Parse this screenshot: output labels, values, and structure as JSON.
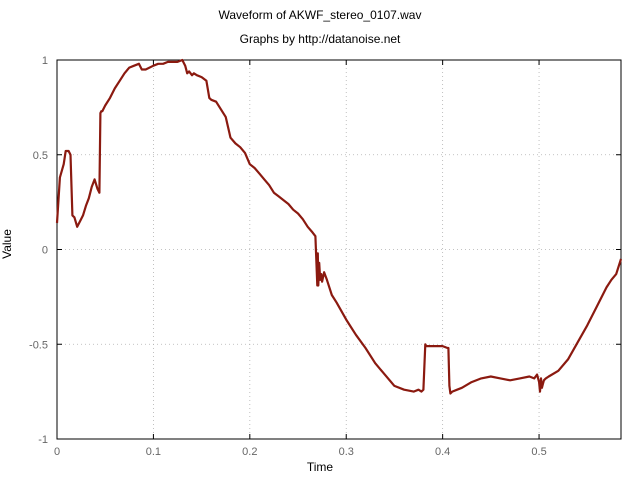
{
  "chart_data": {
    "type": "line",
    "title": "Waveform of AKWF_stereo_0107.wav",
    "subtitle": "Graphs by http://datanoise.net",
    "xlabel": "Time",
    "ylabel": "Value",
    "xlim": [
      0,
      0.585
    ],
    "ylim": [
      -1,
      1
    ],
    "xticks": [
      0,
      0.1,
      0.2,
      0.3,
      0.4,
      0.5
    ],
    "xtick_labels": [
      "0",
      "0.1",
      "0.2",
      "0.3",
      "0.4",
      "0.5"
    ],
    "yticks": [
      1,
      0.5,
      0,
      -0.5,
      -1
    ],
    "ytick_labels": [
      "1",
      "0.5",
      "0",
      "-0.5",
      "-1"
    ],
    "grid": true,
    "line_color": "#8b1a10",
    "series": [
      {
        "x": [
          0,
          0.003,
          0.007,
          0.009,
          0.012,
          0.014,
          0.016,
          0.018,
          0.021,
          0.024,
          0.027,
          0.03,
          0.033,
          0.036,
          0.039,
          0.042,
          0.044,
          0.045,
          0.046,
          0.047,
          0.05,
          0.055,
          0.06,
          0.065,
          0.07,
          0.075,
          0.08,
          0.085,
          0.088,
          0.09,
          0.092,
          0.1,
          0.105,
          0.11,
          0.115,
          0.12,
          0.125,
          0.13,
          0.133,
          0.135,
          0.137,
          0.14,
          0.142,
          0.145,
          0.15,
          0.155,
          0.158,
          0.16,
          0.165,
          0.17,
          0.175,
          0.18,
          0.185,
          0.19,
          0.195,
          0.2,
          0.205,
          0.21,
          0.215,
          0.22,
          0.225,
          0.23,
          0.235,
          0.24,
          0.245,
          0.25,
          0.255,
          0.26,
          0.265,
          0.268,
          0.27,
          0.2705,
          0.271,
          0.272,
          0.273,
          0.274,
          0.275,
          0.277,
          0.28,
          0.285,
          0.29,
          0.3,
          0.31,
          0.32,
          0.33,
          0.34,
          0.35,
          0.36,
          0.37,
          0.375,
          0.378,
          0.38,
          0.382,
          0.383,
          0.39,
          0.4,
          0.405,
          0.406,
          0.407,
          0.408,
          0.41,
          0.415,
          0.42,
          0.43,
          0.44,
          0.45,
          0.46,
          0.47,
          0.48,
          0.49,
          0.495,
          0.498,
          0.5,
          0.501,
          0.502,
          0.503,
          0.504,
          0.505,
          0.507,
          0.51,
          0.52,
          0.53,
          0.54,
          0.55,
          0.56,
          0.57,
          0.575,
          0.58,
          0.585
        ],
        "y": [
          0.14,
          0.38,
          0.45,
          0.52,
          0.52,
          0.5,
          0.18,
          0.17,
          0.12,
          0.15,
          0.18,
          0.23,
          0.27,
          0.33,
          0.37,
          0.32,
          0.3,
          0.72,
          0.73,
          0.73,
          0.76,
          0.8,
          0.85,
          0.89,
          0.93,
          0.96,
          0.97,
          0.98,
          0.95,
          0.95,
          0.95,
          0.97,
          0.98,
          0.98,
          0.99,
          0.99,
          0.99,
          1.0,
          0.97,
          0.93,
          0.94,
          0.92,
          0.93,
          0.92,
          0.91,
          0.89,
          0.8,
          0.79,
          0.78,
          0.74,
          0.7,
          0.59,
          0.56,
          0.54,
          0.51,
          0.45,
          0.43,
          0.4,
          0.37,
          0.34,
          0.3,
          0.28,
          0.26,
          0.24,
          0.21,
          0.19,
          0.16,
          0.12,
          0.09,
          0.07,
          -0.19,
          -0.02,
          -0.19,
          -0.07,
          -0.16,
          -0.13,
          -0.17,
          -0.12,
          -0.16,
          -0.24,
          -0.28,
          -0.37,
          -0.45,
          -0.52,
          -0.6,
          -0.66,
          -0.72,
          -0.74,
          -0.75,
          -0.74,
          -0.75,
          -0.74,
          -0.5,
          -0.51,
          -0.51,
          -0.51,
          -0.52,
          -0.52,
          -0.72,
          -0.76,
          -0.75,
          -0.74,
          -0.73,
          -0.7,
          -0.68,
          -0.67,
          -0.68,
          -0.69,
          -0.68,
          -0.67,
          -0.68,
          -0.66,
          -0.7,
          -0.75,
          -0.68,
          -0.73,
          -0.71,
          -0.69,
          -0.68,
          -0.67,
          -0.64,
          -0.58,
          -0.49,
          -0.4,
          -0.3,
          -0.2,
          -0.16,
          -0.13,
          -0.05
        ]
      }
    ]
  }
}
